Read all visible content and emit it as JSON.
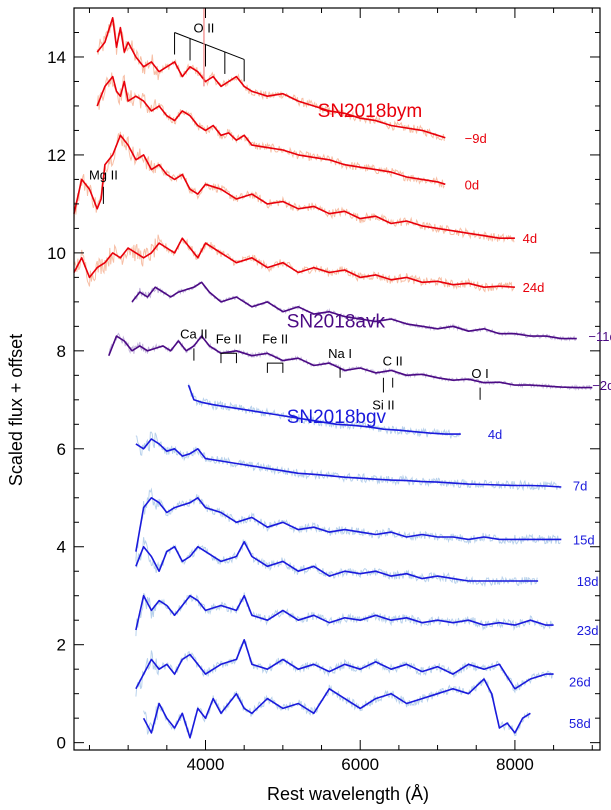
{
  "chart_data": {
    "type": "line",
    "xlabel": "Rest wavelength (Å)",
    "ylabel": "Scaled flux + offset",
    "xlim": [
      2300,
      9100
    ],
    "ylim": [
      -0.15,
      15.0
    ],
    "x_ticks": [
      4000,
      6000,
      8000
    ],
    "y_ticks": [
      0,
      2,
      4,
      6,
      8,
      10,
      12,
      14
    ],
    "objects": [
      {
        "name": "SN2018bym",
        "color": "#e8000b",
        "raw_color": "#f7bfa6",
        "label_at": [
          5450,
          12.9
        ]
      },
      {
        "name": "SN2018avk",
        "color": "#4b0a84",
        "raw_color": "#c4b6dc",
        "label_at": [
          5050,
          8.6
        ]
      },
      {
        "name": "SN2018bgv",
        "color": "#1a1adc",
        "raw_color": "#b9d2ec",
        "label_at": [
          5050,
          6.65
        ]
      }
    ],
    "series": [
      {
        "object": 0,
        "epoch": "−9d",
        "color": "#e8000b",
        "epoch_at": [
          7350,
          12.35
        ],
        "x": [
          2600,
          2700,
          2800,
          2850,
          2900,
          2950,
          3000,
          3100,
          3200,
          3300,
          3400,
          3500,
          3600,
          3700,
          3800,
          3900,
          4000,
          4100,
          4200,
          4300,
          4400,
          4500,
          4600,
          4800,
          5000,
          5200,
          5400,
          5600,
          5800,
          6000,
          6200,
          6400,
          6600,
          6800,
          7000,
          7100
        ],
        "y": [
          14.1,
          14.3,
          14.8,
          14.2,
          14.6,
          14.1,
          14.3,
          14.0,
          13.8,
          13.9,
          13.7,
          13.8,
          13.9,
          13.6,
          13.8,
          13.7,
          13.5,
          13.6,
          13.4,
          13.5,
          13.6,
          13.4,
          13.3,
          13.2,
          13.25,
          13.1,
          13.0,
          12.9,
          12.85,
          12.75,
          12.7,
          12.6,
          12.55,
          12.5,
          12.4,
          12.35
        ]
      },
      {
        "object": 0,
        "epoch": "0d",
        "color": "#e8000b",
        "epoch_at": [
          7350,
          11.4
        ],
        "x": [
          2600,
          2700,
          2800,
          2850,
          2900,
          2950,
          3000,
          3100,
          3200,
          3300,
          3400,
          3500,
          3600,
          3700,
          3800,
          3900,
          4000,
          4100,
          4200,
          4300,
          4400,
          4500,
          4600,
          4800,
          5000,
          5200,
          5400,
          5600,
          5800,
          6000,
          6200,
          6400,
          6600,
          6800,
          7000,
          7100
        ],
        "y": [
          13.0,
          13.4,
          13.6,
          13.3,
          13.2,
          13.5,
          13.1,
          13.2,
          13.1,
          12.9,
          13.0,
          12.8,
          12.7,
          12.9,
          12.8,
          12.6,
          12.5,
          12.6,
          12.4,
          12.45,
          12.3,
          12.4,
          12.2,
          12.15,
          12.1,
          12.0,
          11.95,
          11.9,
          11.8,
          11.75,
          11.7,
          11.65,
          11.55,
          11.5,
          11.45,
          11.4
        ]
      },
      {
        "object": 0,
        "epoch": "4d",
        "color": "#e8000b",
        "epoch_at": [
          8100,
          10.3
        ],
        "x": [
          2300,
          2400,
          2500,
          2600,
          2650,
          2700,
          2800,
          2900,
          3000,
          3100,
          3200,
          3300,
          3400,
          3500,
          3600,
          3700,
          3800,
          3900,
          4000,
          4200,
          4400,
          4600,
          4800,
          5000,
          5200,
          5400,
          5600,
          5800,
          6000,
          6200,
          6400,
          6600,
          6800,
          7000,
          7200,
          7400,
          7600,
          7800,
          8000
        ],
        "y": [
          10.8,
          11.5,
          11.3,
          10.9,
          11.1,
          11.8,
          12.0,
          12.4,
          12.2,
          11.9,
          12.0,
          11.7,
          11.8,
          11.6,
          11.5,
          11.6,
          11.3,
          11.2,
          11.4,
          11.3,
          11.1,
          11.2,
          11.0,
          11.05,
          10.9,
          10.95,
          10.8,
          10.85,
          10.7,
          10.75,
          10.6,
          10.65,
          10.55,
          10.5,
          10.45,
          10.4,
          10.35,
          10.3,
          10.3
        ]
      },
      {
        "object": 0,
        "epoch": "24d",
        "color": "#e8000b",
        "epoch_at": [
          8100,
          9.3
        ],
        "x": [
          2300,
          2400,
          2500,
          2600,
          2700,
          2800,
          2900,
          3000,
          3100,
          3200,
          3300,
          3400,
          3500,
          3600,
          3700,
          3800,
          3900,
          4000,
          4200,
          4400,
          4600,
          4800,
          5000,
          5200,
          5400,
          5600,
          5800,
          6000,
          6200,
          6400,
          6600,
          6800,
          7000,
          7200,
          7400,
          7600,
          7800,
          8000
        ],
        "y": [
          9.6,
          9.9,
          9.5,
          9.7,
          9.8,
          10.0,
          9.9,
          10.1,
          10.0,
          9.9,
          10.0,
          10.2,
          10.1,
          10.0,
          10.3,
          10.1,
          9.9,
          10.2,
          10.0,
          9.8,
          9.9,
          9.7,
          9.8,
          9.6,
          9.7,
          9.6,
          9.65,
          9.5,
          9.55,
          9.45,
          9.5,
          9.4,
          9.42,
          9.35,
          9.38,
          9.3,
          9.32,
          9.3
        ]
      },
      {
        "object": 1,
        "epoch": "−11d",
        "color": "#4b0a84",
        "epoch_at": [
          8950,
          8.3
        ],
        "x": [
          3050,
          3150,
          3250,
          3350,
          3450,
          3550,
          3650,
          3750,
          3850,
          3950,
          4050,
          4200,
          4400,
          4600,
          4800,
          5000,
          5200,
          5400,
          5600,
          5800,
          6000,
          6200,
          6400,
          6600,
          6800,
          7000,
          7200,
          7400,
          7600,
          7800,
          8000,
          8200,
          8400,
          8600,
          8800
        ],
        "y": [
          9.0,
          9.2,
          9.1,
          9.3,
          9.2,
          9.1,
          9.2,
          9.25,
          9.3,
          9.4,
          9.2,
          9.0,
          9.1,
          8.9,
          9.0,
          8.8,
          8.9,
          8.75,
          8.8,
          8.7,
          8.65,
          8.6,
          8.65,
          8.55,
          8.5,
          8.45,
          8.5,
          8.4,
          8.45,
          8.35,
          8.35,
          8.3,
          8.3,
          8.25,
          8.25
        ]
      },
      {
        "object": 1,
        "epoch": "−2d",
        "color": "#4b0a84",
        "epoch_at": [
          9000,
          7.3
        ],
        "x": [
          2750,
          2850,
          2950,
          3050,
          3150,
          3250,
          3350,
          3450,
          3550,
          3650,
          3750,
          3850,
          3950,
          4050,
          4200,
          4400,
          4600,
          4800,
          5000,
          5200,
          5400,
          5600,
          5800,
          6000,
          6200,
          6400,
          6600,
          6800,
          7000,
          7200,
          7400,
          7600,
          7800,
          8000,
          8200,
          8400,
          8600,
          8800,
          9000
        ],
        "y": [
          7.9,
          8.3,
          8.2,
          8.0,
          8.1,
          8.0,
          8.05,
          8.1,
          8.0,
          8.2,
          8.0,
          8.1,
          8.3,
          8.1,
          7.95,
          8.0,
          7.9,
          7.95,
          7.8,
          7.85,
          7.7,
          7.75,
          7.6,
          7.65,
          7.55,
          7.6,
          7.5,
          7.52,
          7.45,
          7.4,
          7.42,
          7.35,
          7.36,
          7.3,
          7.3,
          7.28,
          7.26,
          7.25,
          7.25
        ]
      },
      {
        "object": 2,
        "epoch": "4d",
        "color": "#1a1adc",
        "epoch_at": [
          7650,
          6.3
        ],
        "x": [
          3780,
          3850,
          3950,
          4100,
          4300,
          4500,
          4700,
          4900,
          5100,
          5300,
          5500,
          5700,
          5900,
          6100,
          6300,
          6500,
          6700,
          6900,
          7100,
          7300
        ],
        "y": [
          7.3,
          7.0,
          6.95,
          6.9,
          6.85,
          6.8,
          6.75,
          6.7,
          6.65,
          6.6,
          6.55,
          6.5,
          6.48,
          6.45,
          6.4,
          6.38,
          6.35,
          6.32,
          6.3,
          6.3
        ]
      },
      {
        "object": 2,
        "epoch": "7d",
        "color": "#1a1adc",
        "epoch_at": [
          8750,
          5.25
        ],
        "x": [
          3100,
          3200,
          3300,
          3400,
          3500,
          3600,
          3700,
          3800,
          3900,
          4000,
          4200,
          4400,
          4600,
          4800,
          5000,
          5200,
          5400,
          5600,
          5800,
          6000,
          6200,
          6400,
          6600,
          6800,
          7000,
          7200,
          7400,
          7600,
          7800,
          8000,
          8200,
          8400,
          8600
        ],
        "y": [
          6.1,
          6.0,
          6.2,
          6.1,
          5.95,
          6.0,
          5.85,
          5.9,
          6.0,
          5.8,
          5.75,
          5.7,
          5.65,
          5.6,
          5.55,
          5.5,
          5.48,
          5.45,
          5.42,
          5.4,
          5.38,
          5.36,
          5.35,
          5.33,
          5.32,
          5.3,
          5.28,
          5.27,
          5.26,
          5.25,
          5.25,
          5.24,
          5.22
        ]
      },
      {
        "object": 2,
        "epoch": "15d",
        "color": "#1a1adc",
        "epoch_at": [
          8750,
          4.15
        ],
        "x": [
          3100,
          3200,
          3300,
          3400,
          3500,
          3600,
          3700,
          3800,
          3900,
          4000,
          4200,
          4400,
          4600,
          4800,
          5000,
          5200,
          5400,
          5600,
          5800,
          6000,
          6200,
          6400,
          6600,
          6800,
          7000,
          7200,
          7400,
          7600,
          7800,
          8000,
          8200,
          8400,
          8600
        ],
        "y": [
          3.9,
          4.8,
          5.0,
          4.9,
          4.7,
          4.8,
          4.85,
          4.9,
          5.0,
          4.8,
          4.7,
          4.5,
          4.6,
          4.4,
          4.5,
          4.35,
          4.4,
          4.3,
          4.35,
          4.3,
          4.25,
          4.3,
          4.2,
          4.25,
          4.2,
          4.2,
          4.15,
          4.2,
          4.15,
          4.15,
          4.15,
          4.15,
          4.15
        ]
      },
      {
        "object": 2,
        "epoch": "18d",
        "color": "#1a1adc",
        "epoch_at": [
          8800,
          3.3
        ],
        "x": [
          3100,
          3200,
          3300,
          3400,
          3500,
          3600,
          3700,
          3800,
          3900,
          4000,
          4200,
          4400,
          4500,
          4600,
          4800,
          5000,
          5200,
          5400,
          5600,
          5800,
          6000,
          6200,
          6400,
          6600,
          6800,
          7000,
          7200,
          7400,
          7600,
          7800,
          8000,
          8200,
          8300
        ],
        "y": [
          3.6,
          4.0,
          3.8,
          3.5,
          3.9,
          4.0,
          3.7,
          3.8,
          4.0,
          3.9,
          3.7,
          3.8,
          4.1,
          3.8,
          3.6,
          3.7,
          3.5,
          3.6,
          3.4,
          3.5,
          3.45,
          3.5,
          3.4,
          3.45,
          3.35,
          3.4,
          3.35,
          3.3,
          3.3,
          3.3,
          3.3,
          3.3,
          3.3
        ]
      },
      {
        "object": 2,
        "epoch": "23d",
        "color": "#1a1adc",
        "epoch_at": [
          8800,
          2.3
        ],
        "x": [
          3100,
          3200,
          3300,
          3400,
          3500,
          3600,
          3700,
          3800,
          3900,
          4000,
          4200,
          4400,
          4500,
          4600,
          4800,
          5000,
          5200,
          5400,
          5600,
          5800,
          6000,
          6200,
          6400,
          6600,
          6800,
          7000,
          7200,
          7400,
          7600,
          7800,
          8000,
          8200,
          8400,
          8500
        ],
        "y": [
          2.3,
          3.0,
          2.7,
          2.9,
          2.8,
          2.6,
          2.8,
          3.0,
          2.9,
          2.7,
          2.8,
          2.7,
          3.0,
          2.6,
          2.5,
          2.7,
          2.5,
          2.6,
          2.45,
          2.55,
          2.5,
          2.6,
          2.5,
          2.55,
          2.45,
          2.5,
          2.45,
          2.5,
          2.4,
          2.45,
          2.4,
          2.5,
          2.4,
          2.4
        ]
      },
      {
        "object": 2,
        "epoch": "26d",
        "color": "#1a1adc",
        "epoch_at": [
          8700,
          1.25
        ],
        "x": [
          3100,
          3200,
          3300,
          3400,
          3500,
          3600,
          3700,
          3800,
          3900,
          4000,
          4200,
          4400,
          4500,
          4600,
          4800,
          5000,
          5200,
          5400,
          5600,
          5800,
          6000,
          6200,
          6400,
          6600,
          6800,
          7000,
          7200,
          7400,
          7600,
          7800,
          8000,
          8200,
          8400,
          8500
        ],
        "y": [
          1.1,
          1.4,
          1.7,
          1.5,
          1.6,
          1.4,
          1.7,
          1.8,
          1.6,
          1.4,
          1.6,
          1.7,
          2.1,
          1.6,
          1.5,
          1.7,
          1.5,
          1.6,
          1.45,
          1.6,
          1.5,
          1.65,
          1.5,
          1.6,
          1.45,
          1.55,
          1.4,
          1.6,
          1.5,
          1.6,
          1.1,
          1.3,
          1.4,
          1.4
        ]
      },
      {
        "object": 2,
        "epoch": "58d",
        "color": "#1a1adc",
        "epoch_at": [
          8700,
          0.4
        ],
        "x": [
          3200,
          3300,
          3400,
          3500,
          3600,
          3700,
          3800,
          3900,
          4000,
          4100,
          4200,
          4300,
          4400,
          4500,
          4600,
          4800,
          5000,
          5200,
          5400,
          5600,
          5800,
          6000,
          6200,
          6400,
          6600,
          6800,
          7000,
          7200,
          7400,
          7600,
          7700,
          7800,
          7900,
          8000,
          8100,
          8200
        ],
        "y": [
          0.5,
          0.2,
          0.8,
          0.5,
          0.3,
          0.6,
          0.1,
          0.7,
          0.5,
          0.9,
          0.6,
          0.8,
          1.0,
          0.7,
          0.6,
          0.9,
          0.7,
          0.8,
          0.6,
          1.1,
          0.9,
          0.7,
          0.9,
          1.0,
          0.8,
          0.9,
          1.0,
          1.1,
          1.0,
          1.3,
          1.0,
          0.3,
          0.4,
          0.2,
          0.5,
          0.6
        ]
      }
    ],
    "line_ids": [
      {
        "label": "O II",
        "kind": "comb",
        "at": [
          3980,
          14.5
        ],
        "xs": [
          3600,
          3800,
          4000,
          4250,
          4500
        ],
        "y_top": 14.5,
        "y_bottom": 13.5
      },
      {
        "label": "Mg II",
        "kind": "tick",
        "at": [
          2680,
          11.5
        ],
        "x": 2680,
        "y_top": 11.35,
        "y_bottom": 11.0
      },
      {
        "label": "Ca II",
        "kind": "tick",
        "at": [
          3850,
          8.25
        ],
        "x": 3850,
        "y_top": 8.05,
        "y_bottom": 7.8
      },
      {
        "label": "Fe II",
        "kind": "bracket",
        "at": [
          4300,
          8.15
        ],
        "x1": 4200,
        "x2": 4400,
        "y_top": 7.95,
        "y_bottom": 7.75
      },
      {
        "label": "Fe II",
        "kind": "bracket",
        "at": [
          4900,
          8.15
        ],
        "x1": 4800,
        "x2": 5000,
        "y_top": 7.75,
        "y_bottom": 7.55
      },
      {
        "label": "Na I",
        "kind": "tick",
        "at": [
          5740,
          7.85
        ],
        "x": 5740,
        "y_top": 7.65,
        "y_bottom": 7.45
      },
      {
        "label": "C II",
        "kind": "tick",
        "at": [
          6420,
          7.7
        ],
        "x": 6420,
        "y_top": 7.45,
        "y_bottom": 7.25
      },
      {
        "label": "Si II",
        "kind": "tick_below",
        "at": [
          6300,
          6.8
        ],
        "x": 6300,
        "y_top": 7.45,
        "y_bottom": 7.15
      },
      {
        "label": "O I",
        "kind": "tick",
        "at": [
          7550,
          7.45
        ],
        "x": 7550,
        "y_top": 7.25,
        "y_bottom": 7.0
      }
    ]
  }
}
